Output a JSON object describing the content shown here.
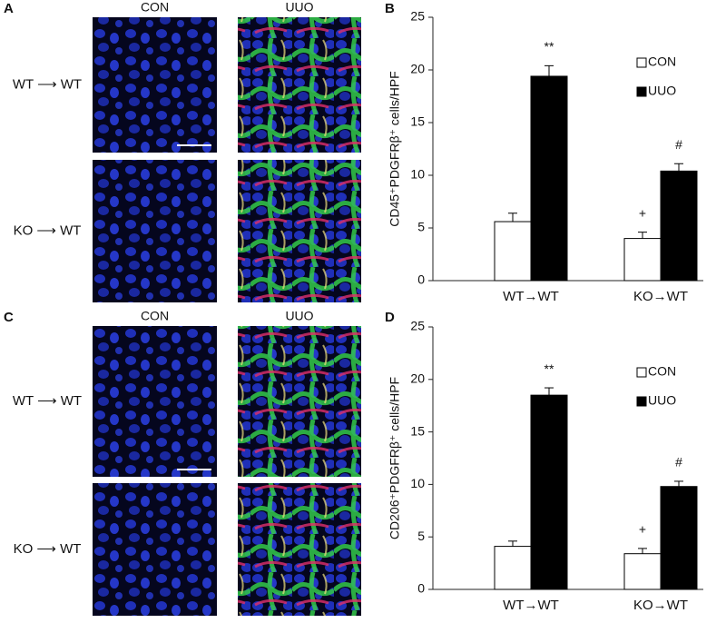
{
  "image_panels": [
    {
      "letter": "A",
      "columns": [
        "CON",
        "UUO"
      ],
      "rows": [
        "WT ⟶ WT",
        "KO ⟶ WT"
      ]
    },
    {
      "letter": "C",
      "columns": [
        "CON",
        "UUO"
      ],
      "rows": [
        "WT ⟶ WT",
        "KO ⟶ WT"
      ]
    }
  ],
  "chart_data": [
    {
      "type": "bar",
      "panel_label": "B",
      "y_label": "CD45⁺PDGFRβ⁺ cells/HPF",
      "categories": [
        "WT→WT",
        "KO→WT"
      ],
      "series": [
        {
          "name": "CON",
          "color": "#ffffff",
          "values": [
            5.6,
            4.0
          ],
          "errors": [
            0.8,
            0.6
          ],
          "annotations": [
            null,
            "+"
          ]
        },
        {
          "name": "UUO",
          "color": "#000000",
          "values": [
            19.4,
            10.4
          ],
          "errors": [
            1.0,
            0.7
          ],
          "annotations": [
            "**",
            "#"
          ]
        }
      ],
      "ylim": [
        0,
        25
      ],
      "yticks": [
        0,
        5,
        10,
        15,
        20,
        25
      ],
      "legend": "upper right"
    },
    {
      "type": "bar",
      "panel_label": "D",
      "y_label": "CD206⁺PDGFRβ⁺ cells/HPF",
      "categories": [
        "WT→WT",
        "KO→WT"
      ],
      "series": [
        {
          "name": "CON",
          "color": "#ffffff",
          "values": [
            4.1,
            3.4
          ],
          "errors": [
            0.5,
            0.5
          ],
          "annotations": [
            null,
            "+"
          ]
        },
        {
          "name": "UUO",
          "color": "#000000",
          "values": [
            18.5,
            9.8
          ],
          "errors": [
            0.7,
            0.5
          ],
          "annotations": [
            "**",
            "#"
          ]
        }
      ],
      "ylim": [
        0,
        25
      ],
      "yticks": [
        0,
        5,
        10,
        15,
        20,
        25
      ],
      "legend": "upper right"
    }
  ]
}
